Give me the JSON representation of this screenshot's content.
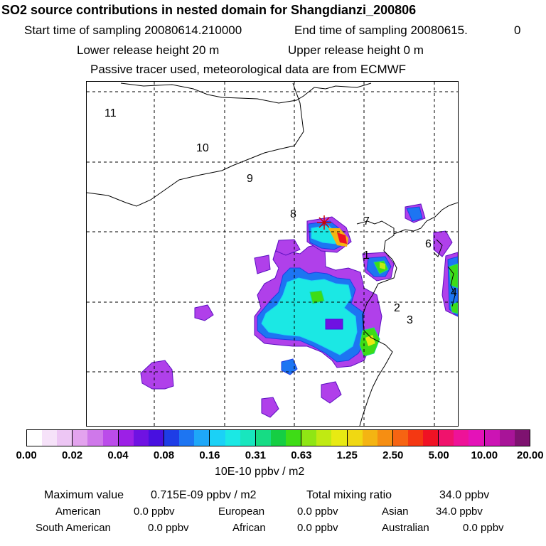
{
  "header": {
    "title": "SO2 source contributions in nested domain for Shangdianzi_200806",
    "start_time": "Start time of sampling 20080614.210000",
    "end_time": "End time of sampling 20080615.",
    "end_time_tail": "0",
    "lower_release": "Lower release height   20 m",
    "upper_release": "Upper release height    0 m",
    "tracer_note": "Passive tracer used, meteorological data are from ECMWF"
  },
  "map": {
    "labels": [
      "11",
      "10",
      "9",
      "8",
      "7",
      "1",
      "6",
      "4",
      "2",
      "3"
    ]
  },
  "colorbar": {
    "ticks": [
      "0.00",
      "0.02",
      "0.04",
      "0.08",
      "0.16",
      "0.31",
      "0.63",
      "1.25",
      "2.50",
      "5.00",
      "10.00",
      "20.00"
    ],
    "unit": "10E-10 ppbv / m2",
    "colors": [
      [
        "#ffffff",
        "#f6e2f9",
        "#edc6f4"
      ],
      [
        "#e3a3ee",
        "#cf78ea",
        "#bb4cea"
      ],
      [
        "#9c20e6",
        "#6f12e2",
        "#4810e0"
      ],
      [
        "#1e3de6",
        "#1d75f2",
        "#1ea7f8"
      ],
      [
        "#1bd1f6",
        "#1be8e4",
        "#18e6be"
      ],
      [
        "#16dc84",
        "#15ce43",
        "#3edc16"
      ],
      [
        "#8fe614",
        "#c0ea12",
        "#e8ea12"
      ],
      [
        "#f0d812",
        "#f4b412",
        "#f68e12"
      ],
      [
        "#f66412",
        "#f43812",
        "#f01224"
      ],
      [
        "#f0126c",
        "#ee1298",
        "#e412b8"
      ],
      [
        "#cc14b4",
        "#a81498",
        "#7e1270"
      ]
    ]
  },
  "stats": {
    "max_label": "Maximum value",
    "max_value": "0.715E-09 ppbv / m2",
    "total_label": "Total mixing ratio",
    "total_value": "34.0 ppbv",
    "regions": [
      {
        "name": "American",
        "value": "0.0 ppbv"
      },
      {
        "name": "European",
        "value": "0.0 ppbv"
      },
      {
        "name": "Asian",
        "value": "34.0 ppbv"
      },
      {
        "name": "South American",
        "value": "0.0 ppbv"
      },
      {
        "name": "African",
        "value": "0.0 ppbv"
      },
      {
        "name": "Australian",
        "value": "0.0 ppbv"
      }
    ]
  }
}
